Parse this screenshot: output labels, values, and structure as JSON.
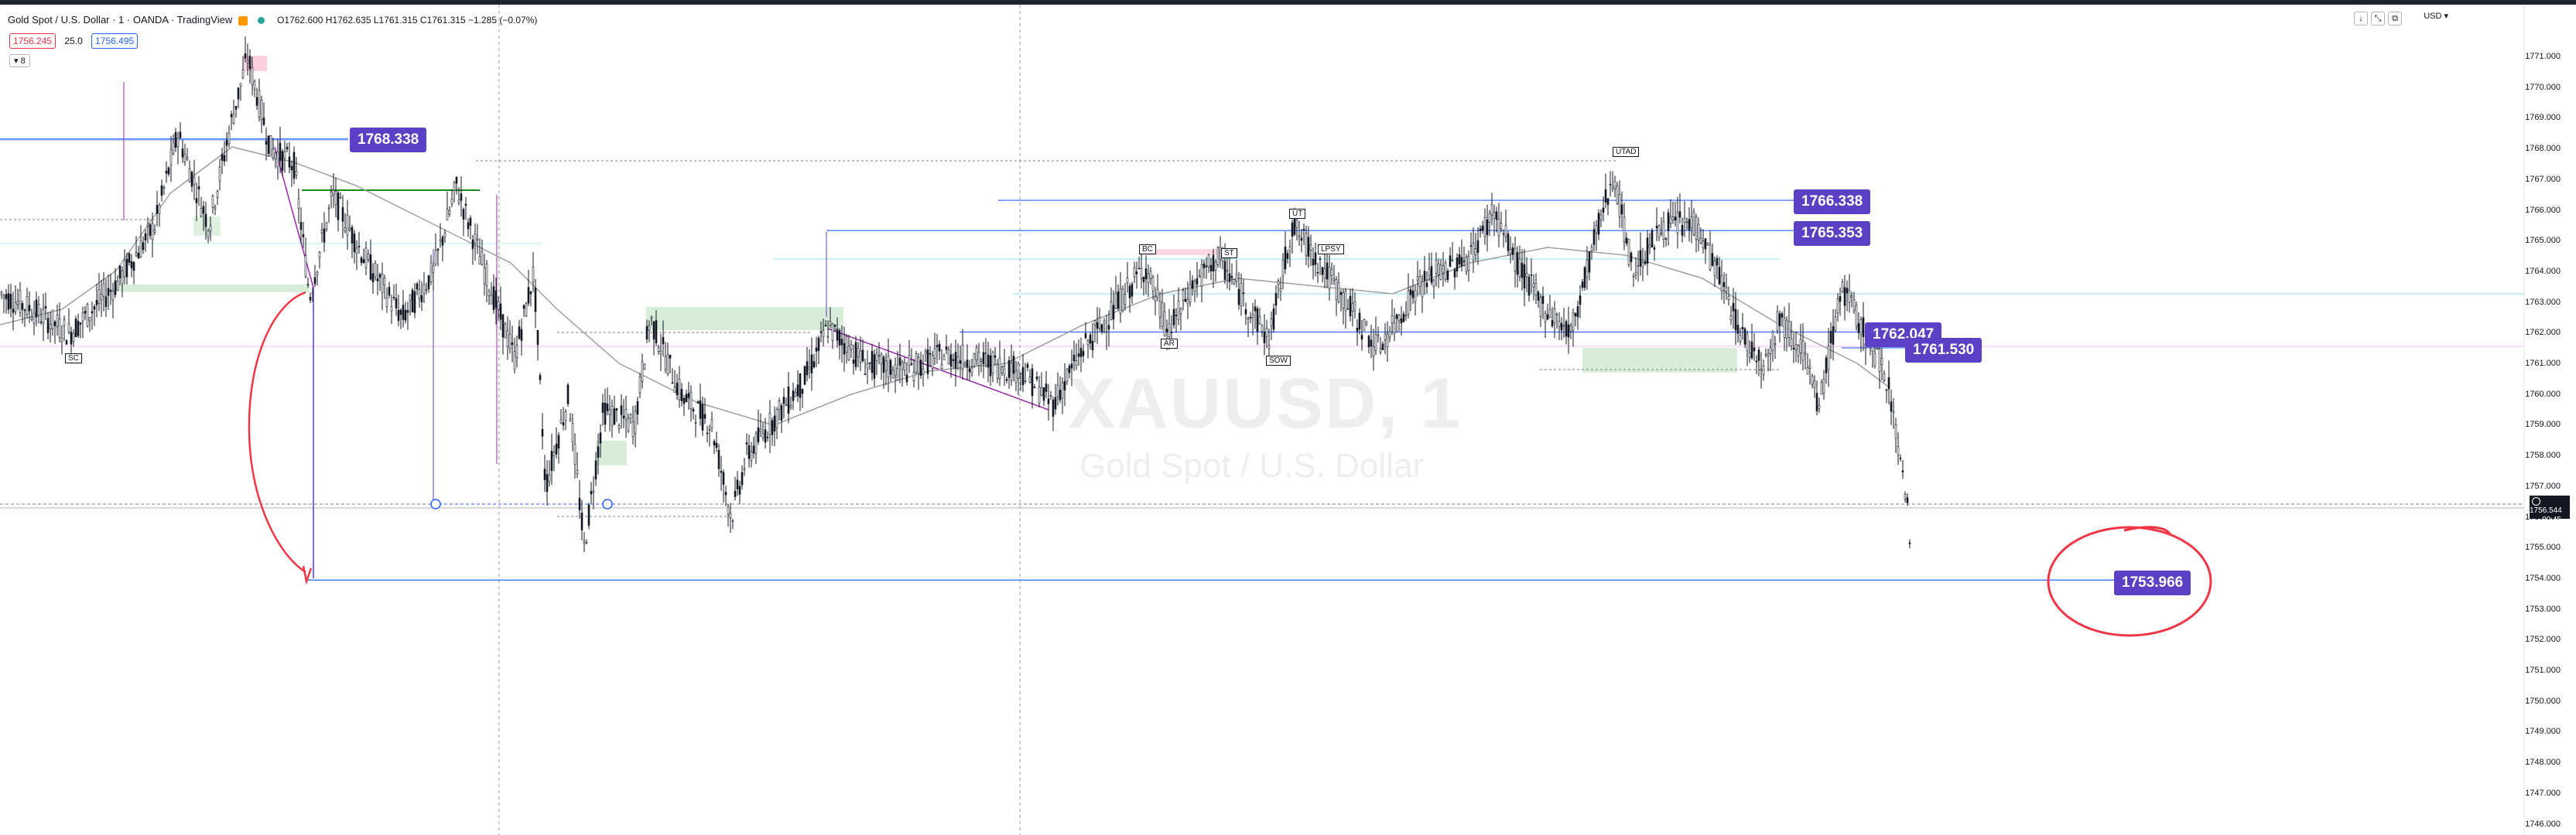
{
  "header": {
    "title": "Gold Spot / U.S. Dollar · 1 · OANDA · TradingView",
    "ohlc": "O1762.600 H1762.635 L1761.315 C1761.315 −1.285 (−0.07%)",
    "sell_price": "1756.245",
    "spread": "25.0",
    "buy_price": "1756.495",
    "indicator_toggle": "8"
  },
  "watermark": {
    "symbol": "XAUUSD, 1",
    "name": "Gold Spot / U.S. Dollar"
  },
  "currency": "USD",
  "price_axis": {
    "ticks": [
      "1771.000",
      "1770.000",
      "1769.000",
      "1768.000",
      "1767.000",
      "1766.000",
      "1765.000",
      "1764.000",
      "1763.000",
      "1762.000",
      "1761.000",
      "1760.000",
      "1759.000",
      "1758.000",
      "1757.000",
      "1756.000",
      "1755.000",
      "1754.000",
      "1753.000",
      "1752.000",
      "1751.000",
      "1750.000",
      "1749.000",
      "1748.000",
      "1747.000",
      "1746.000"
    ],
    "current_price": "1756.544",
    "countdown": "00:45"
  },
  "price_labels": [
    "1768.338",
    "1766.338",
    "1765.353",
    "1762.047",
    "1761.530",
    "1753.966"
  ],
  "wyckoff_labels": [
    "SC",
    "BC",
    "AR",
    "ST",
    "UT",
    "LPSY",
    "SOW",
    "UTAD"
  ],
  "chart_data": {
    "type": "candlestick",
    "symbol": "XAUUSD",
    "timeframe": "1",
    "ylim": [
      1745.5,
      1771.9
    ],
    "horizontal_levels": [
      1768.338,
      1766.338,
      1765.353,
      1762.047,
      1761.53,
      1753.966
    ],
    "colors": {
      "candle": "#131722",
      "levels": "#2962ff",
      "label_bg": "#5b3fc4",
      "circle": "#f23645",
      "zone": "#c8e6c9"
    }
  }
}
